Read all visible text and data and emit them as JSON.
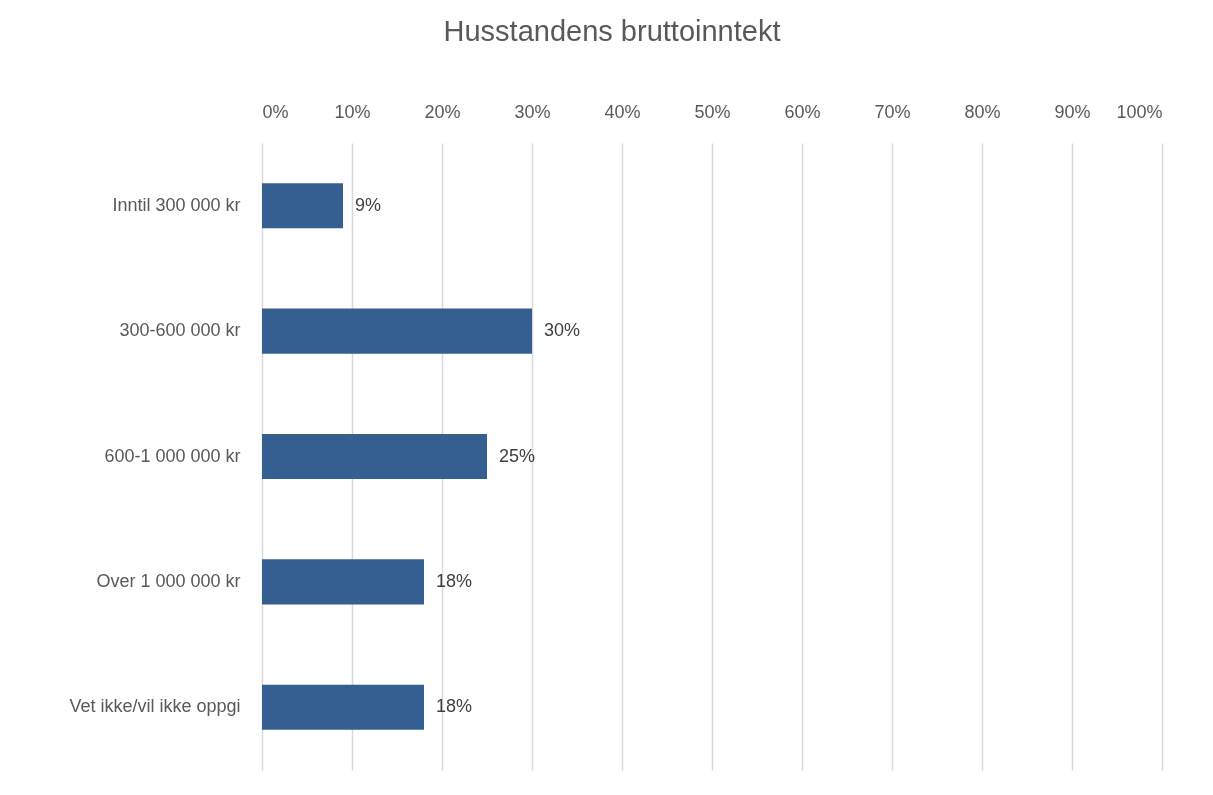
{
  "chart_data": {
    "type": "bar",
    "orientation": "horizontal",
    "title": "Husstandens bruttoinntekt",
    "categories": [
      "Inntil 300 000 kr",
      "300-600 000 kr",
      "600-1 000 000 kr",
      "Over 1 000 000 kr",
      "Vet ikke/vil ikke oppgi"
    ],
    "values": [
      9,
      30,
      25,
      18,
      18
    ],
    "value_labels": [
      "9%",
      "30%",
      "25%",
      "18%",
      "18%"
    ],
    "color": "#355f91",
    "xlim": [
      0,
      100
    ],
    "xticks": [
      {
        "value": 0,
        "label": "0%"
      },
      {
        "value": 10,
        "label": "10%"
      },
      {
        "value": 20,
        "label": "20%"
      },
      {
        "value": 30,
        "label": "30%"
      },
      {
        "value": 40,
        "label": "40%"
      },
      {
        "value": 50,
        "label": "50%"
      },
      {
        "value": 60,
        "label": "60%"
      },
      {
        "value": 70,
        "label": "70%"
      },
      {
        "value": 80,
        "label": "80%"
      },
      {
        "value": 90,
        "label": "90%"
      },
      {
        "value": 100,
        "label": "100%"
      }
    ],
    "grid": "x"
  }
}
